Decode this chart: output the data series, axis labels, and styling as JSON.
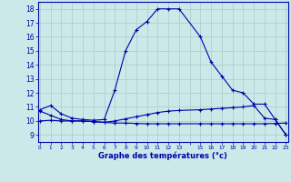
{
  "bg_color": "#cce8e8",
  "grid_color": "#aacccc",
  "line_color": "#0000aa",
  "marker_color": "#0000aa",
  "xlabel": "Graphe des températures (°c)",
  "ylabel_ticks": [
    9,
    10,
    11,
    12,
    13,
    14,
    15,
    16,
    17,
    18
  ],
  "xtick_labels": [
    "0",
    "1",
    "2",
    "3",
    "4",
    "5",
    "6",
    "7",
    "8",
    "9",
    "10",
    "11",
    "12",
    "13",
    "",
    "15",
    "16",
    "17",
    "18",
    "19",
    "20",
    "21",
    "22",
    "23"
  ],
  "xtick_positions": [
    0,
    1,
    2,
    3,
    4,
    5,
    6,
    7,
    8,
    9,
    10,
    11,
    12,
    13,
    14,
    15,
    16,
    17,
    18,
    19,
    20,
    21,
    22,
    23
  ],
  "xlim": [
    -0.2,
    23.2
  ],
  "ylim": [
    8.5,
    18.5
  ],
  "line1_x": [
    0,
    1,
    2,
    3,
    4,
    5,
    6,
    7,
    8,
    9,
    10,
    11,
    12,
    13,
    15,
    16,
    17,
    18,
    19,
    20,
    21,
    22,
    23
  ],
  "line1_y": [
    10.8,
    11.1,
    10.5,
    10.2,
    10.1,
    10.05,
    10.1,
    12.2,
    15.0,
    16.5,
    17.1,
    18.0,
    18.0,
    18.0,
    16.0,
    14.2,
    13.2,
    12.2,
    12.0,
    11.2,
    11.2,
    10.1,
    9.0
  ],
  "line2_x": [
    0,
    1,
    2,
    3,
    4,
    5,
    6,
    7,
    8,
    9,
    10,
    11,
    12,
    13,
    15,
    16,
    17,
    18,
    19,
    20,
    21,
    22,
    23
  ],
  "line2_y": [
    10.7,
    10.4,
    10.1,
    10.0,
    10.0,
    9.95,
    9.9,
    10.0,
    10.15,
    10.3,
    10.45,
    10.6,
    10.7,
    10.75,
    10.8,
    10.85,
    10.9,
    10.95,
    11.0,
    11.1,
    10.2,
    10.1,
    9.0
  ],
  "line3_x": [
    0,
    1,
    2,
    3,
    4,
    5,
    6,
    7,
    8,
    9,
    10,
    11,
    12,
    13,
    15,
    16,
    17,
    18,
    19,
    20,
    21,
    22,
    23
  ],
  "line3_y": [
    10.0,
    10.05,
    10.0,
    10.0,
    10.0,
    9.95,
    9.9,
    9.85,
    9.85,
    9.82,
    9.8,
    9.8,
    9.8,
    9.8,
    9.8,
    9.8,
    9.8,
    9.8,
    9.8,
    9.8,
    9.8,
    9.82,
    9.85
  ]
}
